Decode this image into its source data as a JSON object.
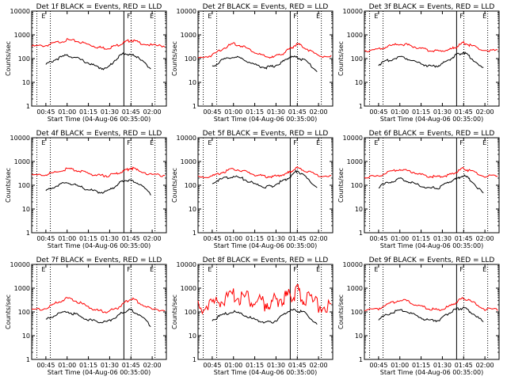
{
  "common": {
    "xlabel": "Start Time (04-Aug-06 00:35:00)",
    "ylabel": "Counts/sec",
    "x_tick_labels": [
      "00:45",
      "01:00",
      "01:15",
      "01:30",
      "01:45",
      "02:00"
    ],
    "y_tick_labels": [
      "1",
      "10",
      "100",
      "1000",
      "10000"
    ],
    "marker_labels": [
      "E",
      "F",
      "E"
    ],
    "colors": {
      "events": "#000000",
      "lld": "#ff0000"
    }
  },
  "chart_data": [
    {
      "type": "line",
      "title": "Det 1f BLACK = Events, RED = LLD",
      "xlabel": "Start Time (04-Aug-06 00:35:00)",
      "ylabel": "Counts/sec",
      "ylim": [
        1,
        10000
      ],
      "yscale": "log",
      "x": [
        "00:35",
        "00:45",
        "00:52",
        "01:00",
        "01:07",
        "01:15",
        "01:22",
        "01:28",
        "01:35",
        "01:40",
        "01:45",
        "01:50",
        "02:00",
        "02:10"
      ],
      "series": [
        {
          "values": [
            350,
            380,
            500,
            650,
            580,
            420,
            320,
            290,
            380,
            500,
            650,
            520,
            380,
            360
          ]
        },
        {
          "values": [
            null,
            60,
            100,
            150,
            110,
            70,
            45,
            40,
            110,
            180,
            150,
            130,
            30,
            null
          ]
        }
      ]
    },
    {
      "type": "line",
      "title": "Det 2f BLACK = Events, RED = LLD",
      "xlabel": "Start Time (04-Aug-06 00:35:00)",
      "ylabel": "Counts/sec",
      "ylim": [
        1,
        10000
      ],
      "yscale": "log",
      "x": [
        "00:35",
        "00:45",
        "00:52",
        "01:00",
        "01:07",
        "01:15",
        "01:22",
        "01:28",
        "01:35",
        "01:40",
        "01:45",
        "01:50",
        "02:00",
        "02:10"
      ],
      "series": [
        {
          "values": [
            110,
            150,
            280,
            450,
            350,
            200,
            130,
            120,
            180,
            280,
            450,
            320,
            140,
            130
          ]
        },
        {
          "values": [
            null,
            50,
            90,
            130,
            100,
            60,
            45,
            50,
            80,
            130,
            120,
            90,
            30,
            null
          ]
        }
      ]
    },
    {
      "type": "line",
      "title": "Det 3f BLACK = Events, RED = LLD",
      "xlabel": "Start Time (04-Aug-06 00:35:00)",
      "ylabel": "Counts/sec",
      "ylim": [
        1,
        10000
      ],
      "yscale": "log",
      "x": [
        "00:35",
        "00:45",
        "00:52",
        "01:00",
        "01:07",
        "01:15",
        "01:22",
        "01:28",
        "01:35",
        "01:40",
        "01:45",
        "01:50",
        "02:00",
        "02:10"
      ],
      "series": [
        {
          "values": [
            230,
            260,
            350,
            450,
            380,
            280,
            230,
            220,
            260,
            330,
            500,
            380,
            240,
            230
          ]
        },
        {
          "values": [
            null,
            60,
            90,
            130,
            100,
            65,
            50,
            55,
            100,
            150,
            200,
            120,
            35,
            null
          ]
        }
      ]
    },
    {
      "type": "line",
      "title": "Det 4f BLACK = Events, RED = LLD",
      "xlabel": "Start Time (04-Aug-06 00:35:00)",
      "ylabel": "Counts/sec",
      "ylim": [
        1,
        10000
      ],
      "yscale": "log",
      "x": [
        "00:35",
        "00:45",
        "00:52",
        "01:00",
        "01:07",
        "01:15",
        "01:22",
        "01:28",
        "01:35",
        "01:40",
        "01:45",
        "01:50",
        "02:00",
        "02:10"
      ],
      "series": [
        {
          "values": [
            280,
            300,
            380,
            520,
            450,
            330,
            280,
            270,
            330,
            420,
            580,
            450,
            290,
            280
          ]
        },
        {
          "values": [
            null,
            60,
            100,
            140,
            100,
            70,
            55,
            55,
            110,
            170,
            180,
            130,
            40,
            null
          ]
        }
      ]
    },
    {
      "type": "line",
      "title": "Det 5f BLACK = Events, RED = LLD",
      "xlabel": "Start Time (04-Aug-06 00:35:00)",
      "ylabel": "Counts/sec",
      "ylim": [
        1,
        10000
      ],
      "yscale": "log",
      "x": [
        "00:35",
        "00:45",
        "00:52",
        "01:00",
        "01:07",
        "01:15",
        "01:22",
        "01:28",
        "01:35",
        "01:40",
        "01:45",
        "01:50",
        "02:00",
        "02:10"
      ],
      "series": [
        {
          "values": [
            240,
            260,
            380,
            520,
            420,
            300,
            250,
            245,
            300,
            380,
            600,
            450,
            270,
            260
          ]
        },
        {
          "values": [
            null,
            140,
            200,
            260,
            200,
            120,
            90,
            100,
            170,
            240,
            450,
            250,
            80,
            null
          ]
        }
      ]
    },
    {
      "type": "line",
      "title": "Det 6f BLACK = Events, RED = LLD",
      "xlabel": "Start Time (04-Aug-06 00:35:00)",
      "ylabel": "Counts/sec",
      "ylim": [
        1,
        10000
      ],
      "yscale": "log",
      "x": [
        "00:35",
        "00:45",
        "00:52",
        "01:00",
        "01:07",
        "01:15",
        "01:22",
        "01:28",
        "01:35",
        "01:40",
        "01:45",
        "01:50",
        "02:00",
        "02:10"
      ],
      "series": [
        {
          "values": [
            240,
            260,
            380,
            500,
            420,
            300,
            250,
            245,
            290,
            380,
            550,
            420,
            260,
            250
          ]
        },
        {
          "values": [
            null,
            90,
            140,
            200,
            150,
            100,
            80,
            85,
            150,
            200,
            280,
            180,
            40,
            null
          ]
        }
      ]
    },
    {
      "type": "line",
      "title": "Det 7f BLACK = Events, RED = LLD",
      "xlabel": "Start Time (04-Aug-06 00:35:00)",
      "ylabel": "Counts/sec",
      "ylim": [
        1,
        10000
      ],
      "yscale": "log",
      "x": [
        "00:35",
        "00:45",
        "00:52",
        "01:00",
        "01:07",
        "01:15",
        "01:22",
        "01:28",
        "01:35",
        "01:40",
        "01:45",
        "01:50",
        "02:00",
        "02:10"
      ],
      "series": [
        {
          "values": [
            130,
            150,
            250,
            400,
            300,
            170,
            120,
            110,
            150,
            250,
            400,
            280,
            130,
            125
          ]
        },
        {
          "values": [
            null,
            50,
            80,
            110,
            80,
            50,
            40,
            40,
            70,
            110,
            130,
            90,
            25,
            null
          ]
        }
      ]
    },
    {
      "type": "line",
      "title": "Det 8f BLACK = Events, RED = LLD",
      "xlabel": "Start Time (04-Aug-06 00:35:00)",
      "ylabel": "Counts/sec",
      "ylim": [
        1,
        10000
      ],
      "yscale": "log",
      "x": [
        "00:35",
        "00:45",
        "00:52",
        "01:00",
        "01:07",
        "01:15",
        "01:22",
        "01:28",
        "01:35",
        "01:40",
        "01:45",
        "01:50",
        "02:00",
        "02:10"
      ],
      "series": [
        {
          "values": [
            250,
            300,
            500,
            700,
            600,
            450,
            350,
            400,
            600,
            800,
            1000,
            600,
            300,
            260
          ]
        },
        {
          "values": [
            null,
            50,
            80,
            110,
            80,
            50,
            40,
            40,
            80,
            130,
            120,
            100,
            30,
            null
          ]
        }
      ]
    },
    {
      "type": "line",
      "title": "Det 9f BLACK = Events, RED = LLD",
      "xlabel": "Start Time (04-Aug-06 00:35:00)",
      "ylabel": "Counts/sec",
      "ylim": [
        1,
        10000
      ],
      "yscale": "log",
      "x": [
        "00:35",
        "00:45",
        "00:52",
        "01:00",
        "01:07",
        "01:15",
        "01:22",
        "01:28",
        "01:35",
        "01:40",
        "01:45",
        "01:50",
        "02:00",
        "02:10"
      ],
      "series": [
        {
          "values": [
            130,
            150,
            230,
            350,
            280,
            180,
            140,
            130,
            180,
            280,
            420,
            300,
            140,
            130
          ]
        },
        {
          "values": [
            null,
            50,
            90,
            130,
            100,
            60,
            45,
            50,
            100,
            140,
            160,
            110,
            35,
            null
          ]
        }
      ]
    }
  ]
}
